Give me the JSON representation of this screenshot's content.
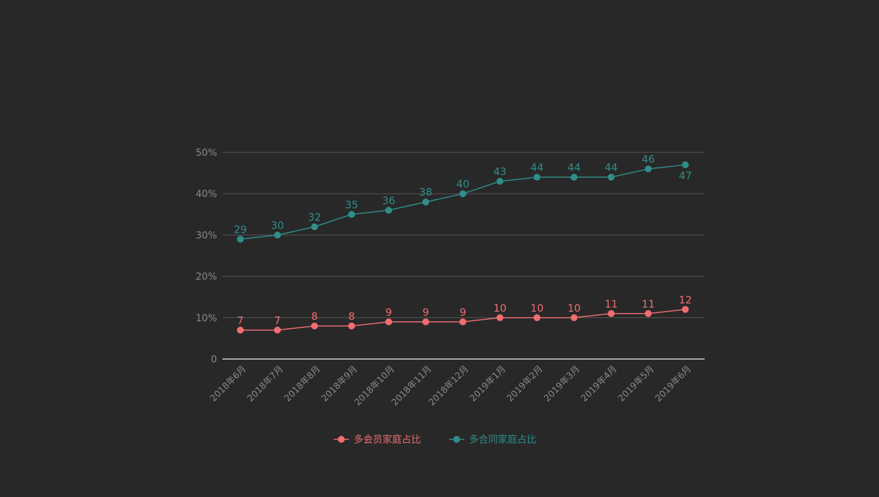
{
  "chart_data": {
    "type": "line",
    "title": "",
    "xlabel": "",
    "ylabel": "",
    "ylim": [
      0,
      50
    ],
    "yticks": [
      {
        "value": 0,
        "label": "0"
      },
      {
        "value": 10,
        "label": "10%"
      },
      {
        "value": 20,
        "label": "20%"
      },
      {
        "value": 30,
        "label": "30%"
      },
      {
        "value": 40,
        "label": "40%"
      },
      {
        "value": 50,
        "label": "50%"
      }
    ],
    "categories": [
      "2018年6月",
      "2018年7月",
      "2018年8月",
      "2018年9月",
      "2018年10月",
      "2018年11月",
      "2018年12月",
      "2019年1月",
      "2019年2月",
      "2019年3月",
      "2019年4月",
      "2019年5月",
      "2019年6月"
    ],
    "series": [
      {
        "name": "多会员家庭占比",
        "color": "#f06d70",
        "values": [
          7,
          7,
          8,
          8,
          9,
          9,
          9,
          10,
          10,
          10,
          11,
          11,
          12
        ]
      },
      {
        "name": "多合同家庭占比",
        "color": "#2f8e89",
        "values": [
          29,
          30,
          32,
          35,
          36,
          38,
          40,
          43,
          44,
          44,
          44,
          46,
          47
        ]
      }
    ],
    "grid": true,
    "legend_position": "bottom"
  }
}
